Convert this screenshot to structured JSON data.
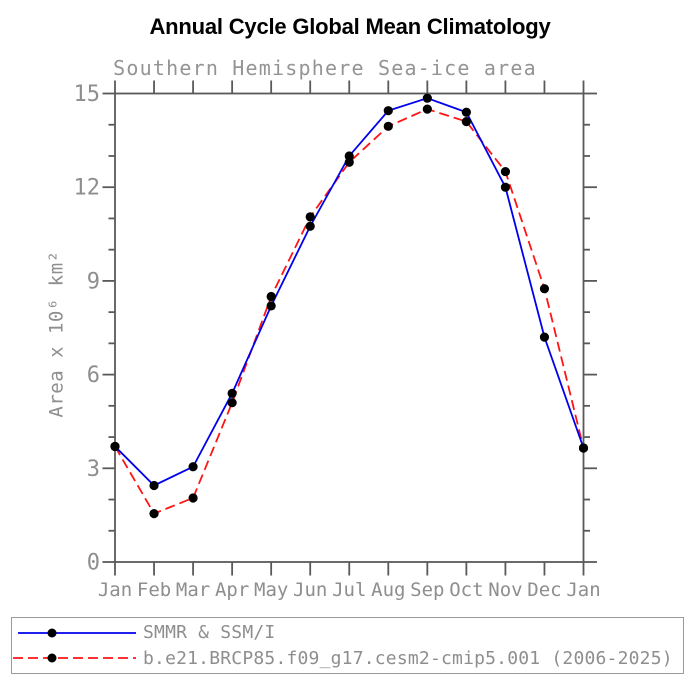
{
  "title": "Annual Cycle Global Mean Climatology",
  "subtitle": "Southern Hemisphere Sea-ice area",
  "chart_data": {
    "type": "line",
    "title": "Annual Cycle Global Mean Climatology",
    "subtitle": "Southern Hemisphere Sea-ice area",
    "xlabel": "",
    "ylabel": "Area x 10⁶ km²",
    "categories": [
      "Jan",
      "Feb",
      "Mar",
      "Apr",
      "May",
      "Jun",
      "Jul",
      "Aug",
      "Sep",
      "Oct",
      "Nov",
      "Dec",
      "Jan"
    ],
    "ylim": [
      0,
      15
    ],
    "ytick_major_step": 3,
    "ytick_minor_step": 1,
    "grid": false,
    "legend_position": "bottom-left-box",
    "series": [
      {
        "name": "SMMR & SSM/I",
        "color": "#0000ee",
        "style": "solid",
        "marker": "circle",
        "marker_color": "#000000",
        "values": [
          3.7,
          2.45,
          3.05,
          5.4,
          8.2,
          10.75,
          13.0,
          14.45,
          14.85,
          14.4,
          12.0,
          7.2,
          3.65
        ]
      },
      {
        "name": "b.e21.BRCP85.f09_g17.cesm2-cmip5.001 (2006-2025)",
        "color": "#ff1414",
        "style": "dashed",
        "marker": "circle",
        "marker_color": "#000000",
        "values": [
          3.7,
          1.55,
          2.05,
          5.1,
          8.5,
          11.05,
          12.8,
          13.95,
          14.5,
          14.1,
          12.5,
          8.75,
          3.65
        ]
      }
    ]
  },
  "colors": {
    "title_text": "#000000",
    "muted_text": "#8e8e8e",
    "axis": "#595959",
    "legend_border": "#9a9a9a",
    "background": "#ffffff",
    "marker": "#000000"
  }
}
